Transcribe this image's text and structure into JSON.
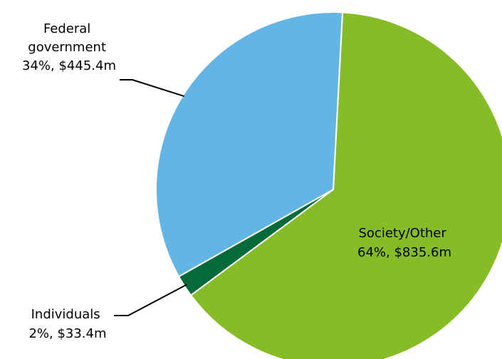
{
  "chart_data": {
    "type": "pie",
    "title": "",
    "start_angle_deg": 3,
    "direction": "clockwise",
    "slices": [
      {
        "name": "Society/Other",
        "percent": 64,
        "amount_label": "$835.6m",
        "label_lines": [
          "Society/Other",
          "64%, $835.6m"
        ],
        "color": "#86bc25",
        "label_placement": "inside"
      },
      {
        "name": "Individuals",
        "percent": 2,
        "amount_label": "$33.4m",
        "label_lines": [
          "Individuals",
          "2%, $33.4m"
        ],
        "color": "#046a38",
        "label_placement": "outside-bottom-left"
      },
      {
        "name": "Federal government",
        "percent": 34,
        "amount_label": "$445.4m",
        "label_lines": [
          "Federal",
          "government",
          "34%, $445.4m"
        ],
        "color": "#62b5e5",
        "label_placement": "outside-top-left"
      }
    ]
  }
}
